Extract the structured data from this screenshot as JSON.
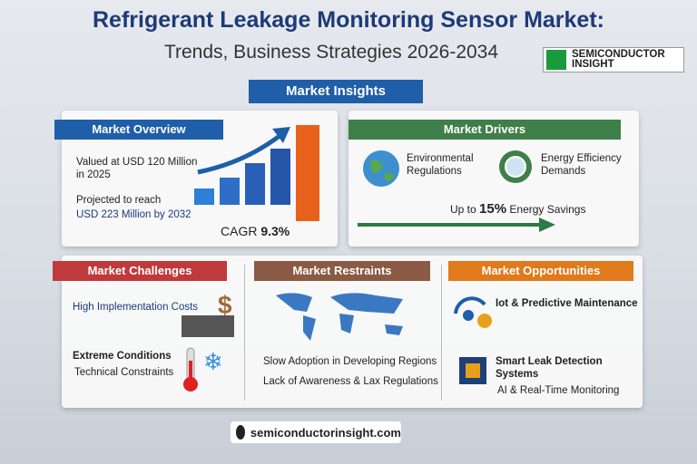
{
  "header": {
    "title": "Refrigerant Leakage Monitoring Sensor Market:",
    "subtitle": "Trends, Business Strategies 2026-2034",
    "logo": [
      "SEMICONDUCTOR",
      "INSIGHT"
    ]
  },
  "banner": "Market Insights",
  "overview": {
    "heading": "Market Overview",
    "valued": "Valued at USD 120 Million in 2025",
    "projected": "Projected to reach",
    "target": "USD 223 Million by 2032",
    "cagr_label": "CAGR",
    "cagr_value": "9.3%"
  },
  "drivers": {
    "heading": "Market Drivers",
    "items": [
      "Environmental Regulations",
      "Energy Efficiency Demands"
    ],
    "savings": [
      "Up to",
      "15%",
      "Energy Savings"
    ]
  },
  "challenges": {
    "heading": "Market Challenges",
    "items": [
      "High Implementation Costs",
      "Extreme Conditions",
      "Technical Constraints"
    ]
  },
  "restraints": {
    "heading": "Market Restraints",
    "items": [
      "Slow Adoption in Developing Regions",
      "Lack of Awareness & Lax Regulations"
    ]
  },
  "opportunities": {
    "heading": "Market Opportunities",
    "items": [
      "Iot & Predictive Maintenance",
      "Smart Leak Detection Systems",
      "AI & Real-Time Monitoring"
    ]
  },
  "footer": "semiconductorinsight.com"
}
